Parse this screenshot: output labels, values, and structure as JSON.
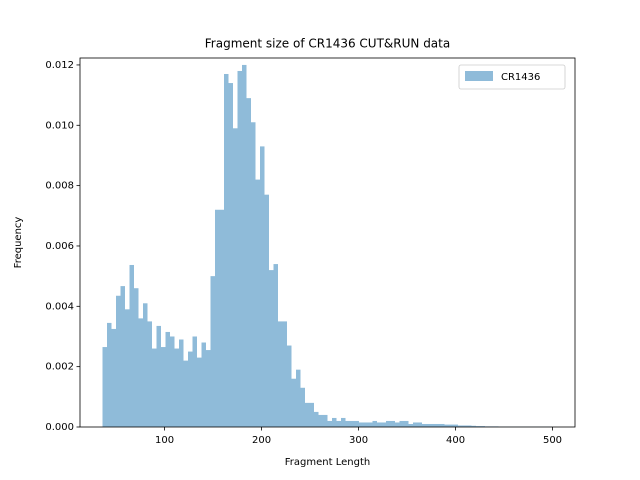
{
  "chart_data": {
    "type": "histogram",
    "title": "Fragment size of CR1436 CUT&RUN data",
    "xlabel": "Fragment Length",
    "ylabel": "Frequency",
    "series": [
      {
        "name": "CR1436",
        "color": "#8fbbd9",
        "bins": [
          36,
          40.64,
          45.28,
          49.92,
          54.56,
          59.2,
          63.84,
          68.48,
          73.12,
          77.76,
          82.4,
          87.04,
          91.68,
          96.32,
          100.96,
          105.6,
          110.24,
          114.88,
          119.52,
          124.16,
          128.8,
          133.44,
          138.08,
          142.72,
          147.36,
          152,
          156.64,
          161.28,
          165.92,
          170.56,
          175.2,
          179.84,
          184.48,
          189.12,
          193.76,
          198.4,
          203.04,
          207.68,
          212.32,
          216.96,
          221.6,
          226.24,
          230.88,
          235.52,
          240.16,
          244.8,
          249.44,
          254.08,
          258.72,
          263.36,
          268,
          272.64,
          277.28,
          281.92,
          286.56,
          291.2,
          295.84,
          300.48,
          305.12,
          309.76,
          314.4,
          319.04,
          323.68,
          328.32,
          332.96,
          337.6,
          342.24,
          346.88,
          351.52,
          356.16,
          360.8,
          365.44,
          370.08,
          374.72,
          379.36,
          384,
          388.64,
          393.28,
          397.92,
          402.56,
          407.2,
          411.84,
          416.48,
          421.12,
          425.76,
          430.4,
          435.04,
          439.68,
          444.32,
          448.96,
          453.6,
          458.24,
          462.88,
          467.52,
          472.16,
          476.8,
          481.44,
          486.08,
          490.72,
          495.36,
          500
        ],
        "values": [
          0.00265,
          0.00345,
          0.00325,
          0.00435,
          0.00467,
          0.0039,
          0.00537,
          0.0046,
          0.0036,
          0.0041,
          0.0035,
          0.0026,
          0.00335,
          0.00265,
          0.00315,
          0.003,
          0.0026,
          0.0029,
          0.0022,
          0.0025,
          0.003,
          0.0023,
          0.0028,
          0.00255,
          0.005,
          0.0072,
          0.0072,
          0.0117,
          0.0114,
          0.0099,
          0.0118,
          0.012,
          0.0109,
          0.0101,
          0.0082,
          0.0093,
          0.0077,
          0.0052,
          0.0054,
          0.0035,
          0.0035,
          0.0027,
          0.0016,
          0.0019,
          0.0013,
          0.0008,
          0.0008,
          0.0005,
          0.0004,
          0.0004,
          0.0002,
          0.0003,
          0.0002,
          0.0003,
          0.0002,
          0.0002,
          0.0002,
          0.00015,
          0.00015,
          0.00015,
          0.0002,
          0.00015,
          0.00015,
          0.0002,
          0.0002,
          0.00015,
          0.0002,
          0.0002,
          0.0001,
          0.00015,
          0.00015,
          0.0001,
          0.0001,
          0.0001,
          0.0001,
          0.0001,
          8e-05,
          8e-05,
          8e-05,
          5e-05,
          5e-05,
          5e-05,
          4e-05,
          3e-05,
          3e-05,
          2e-05,
          2e-05,
          2e-05,
          1e-05,
          1e-05,
          1e-05,
          1e-05,
          1e-05,
          1e-05,
          1e-05,
          1e-05,
          1e-05,
          1e-05,
          1e-05,
          1e-05
        ]
      }
    ],
    "xlim": [
      12.8,
      523.2
    ],
    "xticks": [
      100,
      200,
      300,
      400,
      500
    ],
    "ylim": [
      0,
      0.01223
    ],
    "yticks": [
      {
        "value": 0,
        "label": "0.000"
      },
      {
        "value": 0.002,
        "label": "0.002"
      },
      {
        "value": 0.004,
        "label": "0.004"
      },
      {
        "value": 0.006,
        "label": "0.006"
      },
      {
        "value": 0.008,
        "label": "0.008"
      },
      {
        "value": 0.01,
        "label": "0.010"
      },
      {
        "value": 0.012,
        "label": "0.012"
      }
    ],
    "legend": "upper right"
  }
}
